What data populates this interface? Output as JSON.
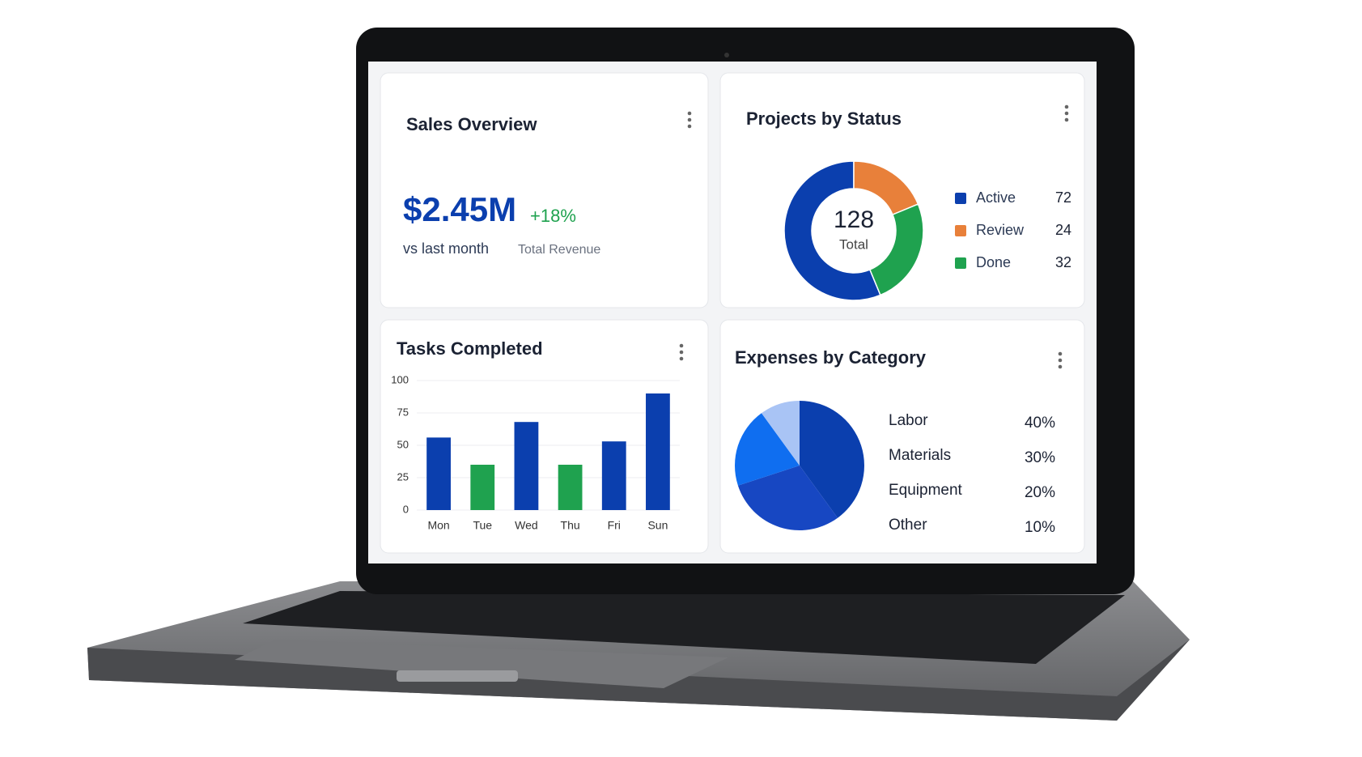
{
  "sales_overview": {
    "title": "Sales Overview",
    "value": "$2.45M",
    "change": "+18%",
    "comparison": "vs last month",
    "metric": "Total Revenue"
  },
  "chart_data": [
    {
      "type": "donut",
      "title": "Projects by Status",
      "total": 128,
      "total_label": "Total",
      "categories": [
        "Active",
        "Review",
        "Done"
      ],
      "values": [
        72,
        24,
        32
      ],
      "colors": [
        "#0b3fae",
        "#e8803a",
        "#1fa24f"
      ]
    },
    {
      "type": "bar",
      "title": "Tasks Completed",
      "categories": [
        "Mon",
        "Tue",
        "Wed",
        "Thu",
        "Fri",
        "Sun"
      ],
      "values": [
        56,
        35,
        68,
        35,
        53,
        90
      ],
      "colors": [
        "#0b3fae",
        "#1fa24f",
        "#0b3fae",
        "#1fa24f",
        "#0b3fae",
        "#0b3fae"
      ],
      "ylim": [
        0,
        100
      ],
      "yticks": [
        0,
        25,
        50,
        75,
        100
      ],
      "grid": true
    },
    {
      "type": "pie",
      "title": "Expenses by Category",
      "categories": [
        "Labor",
        "Materials",
        "Equipment",
        "Other"
      ],
      "values": [
        40,
        30,
        20,
        10
      ],
      "value_labels": [
        "40%",
        "30%",
        "20%",
        "10%"
      ],
      "colors": [
        "#0b3fae",
        "#1747c2",
        "#0f6ef0",
        "#a9c4f5"
      ]
    }
  ]
}
